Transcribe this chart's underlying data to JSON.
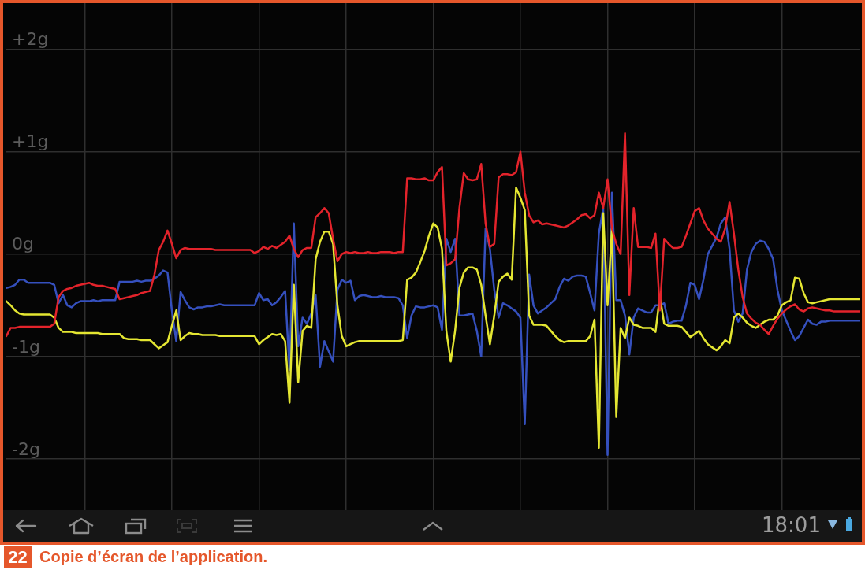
{
  "chart_data": {
    "type": "line",
    "categories": [
      null,
      null,
      null,
      null,
      null,
      null,
      null,
      null,
      null,
      null,
      null,
      null,
      null,
      null,
      null,
      null,
      null,
      null,
      null,
      null,
      null,
      null,
      null,
      null,
      null,
      null,
      null,
      null,
      null,
      null,
      null,
      null,
      null,
      null,
      null,
      null,
      null,
      null,
      null,
      null,
      null,
      null,
      null,
      null,
      null,
      null,
      null,
      null,
      null,
      null,
      null,
      null,
      null,
      null,
      null,
      null,
      null,
      null,
      null,
      null,
      null,
      null,
      null,
      null,
      null,
      null,
      null,
      null,
      null,
      null,
      null,
      null,
      null,
      null,
      null,
      null,
      null,
      null,
      null,
      null,
      null,
      null,
      null,
      null,
      null,
      null,
      null,
      null,
      null,
      null,
      null,
      null,
      null,
      null,
      null,
      null,
      null,
      null,
      null,
      null,
      null,
      null,
      null,
      null,
      null,
      null,
      null,
      null,
      null,
      null,
      null,
      null,
      null,
      null,
      null,
      null,
      null,
      null,
      null,
      null,
      null,
      null,
      null,
      null,
      null,
      null,
      null,
      null,
      null,
      null,
      null,
      null,
      null,
      null,
      null,
      null,
      null,
      null,
      null,
      null,
      null,
      null,
      null,
      null,
      null,
      null,
      null,
      null,
      null,
      null,
      null,
      null,
      null,
      null,
      null,
      null,
      null,
      null,
      null,
      null,
      null,
      null,
      null,
      null,
      null,
      null,
      null,
      null,
      null,
      null,
      null,
      null,
      null,
      null,
      null,
      null,
      null,
      null,
      null,
      null,
      null,
      null,
      null,
      null,
      null,
      null,
      null,
      null,
      null,
      null,
      null,
      null,
      null,
      null,
      null,
      null,
      null
    ],
    "series": [
      {
        "color": "#e3232b",
        "values": [
          -0.8,
          -0.72,
          -0.72,
          -0.71,
          -0.71,
          -0.71,
          -0.71,
          -0.71,
          -0.71,
          -0.71,
          -0.71,
          -0.68,
          -0.42,
          -0.36,
          -0.34,
          -0.33,
          -0.31,
          -0.3,
          -0.29,
          -0.28,
          -0.3,
          -0.31,
          -0.31,
          -0.32,
          -0.33,
          -0.34,
          -0.44,
          -0.43,
          -0.42,
          -0.41,
          -0.4,
          -0.38,
          -0.37,
          -0.36,
          -0.2,
          0.04,
          0.12,
          0.23,
          0.1,
          -0.04,
          0.04,
          0.06,
          0.05,
          0.05,
          0.05,
          0.05,
          0.05,
          0.05,
          0.04,
          0.04,
          0.04,
          0.04,
          0.04,
          0.04,
          0.04,
          0.04,
          0.04,
          0.01,
          0.03,
          0.07,
          0.05,
          0.08,
          0.06,
          0.09,
          0.12,
          0.18,
          0.05,
          -0.03,
          0.04,
          0.06,
          0.06,
          0.36,
          0.4,
          0.45,
          0.4,
          0.15,
          -0.07,
          0.0,
          0.02,
          0.01,
          0.02,
          0.01,
          0.01,
          0.02,
          0.01,
          0.01,
          0.02,
          0.02,
          0.02,
          0.01,
          0.02,
          0.02,
          0.74,
          0.74,
          0.73,
          0.73,
          0.74,
          0.72,
          0.72,
          0.8,
          0.85,
          -0.11,
          -0.09,
          -0.05,
          0.45,
          0.79,
          0.73,
          0.72,
          0.73,
          0.88,
          0.3,
          0.07,
          0.1,
          0.75,
          0.78,
          0.78,
          0.77,
          0.8,
          1.0,
          0.6,
          0.38,
          0.31,
          0.33,
          0.29,
          0.3,
          0.29,
          0.28,
          0.27,
          0.26,
          0.28,
          0.31,
          0.34,
          0.38,
          0.39,
          0.35,
          0.38,
          0.6,
          0.45,
          0.73,
          0.25,
          0.1,
          0.0,
          1.18,
          -0.4,
          0.45,
          0.07,
          0.07,
          0.07,
          0.06,
          0.2,
          -0.55,
          0.15,
          0.1,
          0.06,
          0.06,
          0.07,
          0.18,
          0.3,
          0.42,
          0.45,
          0.33,
          0.25,
          0.2,
          0.15,
          0.12,
          0.25,
          0.51,
          0.2,
          -0.15,
          -0.42,
          -0.58,
          -0.63,
          -0.67,
          -0.69,
          -0.74,
          -0.78,
          -0.7,
          -0.63,
          -0.58,
          -0.54,
          -0.51,
          -0.49,
          -0.54,
          -0.56,
          -0.53,
          -0.52,
          -0.53,
          -0.54,
          -0.55,
          -0.55,
          -0.56,
          -0.56,
          -0.56,
          -0.56,
          -0.56,
          -0.56,
          -0.56
        ]
      },
      {
        "color": "#e4e632",
        "values": [
          -0.46,
          -0.5,
          -0.55,
          -0.58,
          -0.59,
          -0.59,
          -0.59,
          -0.59,
          -0.59,
          -0.59,
          -0.59,
          -0.62,
          -0.72,
          -0.76,
          -0.76,
          -0.76,
          -0.77,
          -0.77,
          -0.77,
          -0.77,
          -0.77,
          -0.77,
          -0.78,
          -0.78,
          -0.78,
          -0.78,
          -0.78,
          -0.82,
          -0.83,
          -0.83,
          -0.83,
          -0.84,
          -0.84,
          -0.84,
          -0.88,
          -0.92,
          -0.89,
          -0.86,
          -0.7,
          -0.55,
          -0.84,
          -0.8,
          -0.77,
          -0.78,
          -0.78,
          -0.79,
          -0.79,
          -0.79,
          -0.79,
          -0.8,
          -0.8,
          -0.8,
          -0.8,
          -0.8,
          -0.8,
          -0.8,
          -0.8,
          -0.8,
          -0.88,
          -0.84,
          -0.81,
          -0.78,
          -0.79,
          -0.78,
          -0.85,
          -1.45,
          -0.3,
          -1.25,
          -0.75,
          -0.7,
          -0.72,
          -0.05,
          0.12,
          0.22,
          0.22,
          0.1,
          -0.5,
          -0.8,
          -0.9,
          -0.88,
          -0.86,
          -0.85,
          -0.85,
          -0.85,
          -0.85,
          -0.85,
          -0.85,
          -0.85,
          -0.85,
          -0.85,
          -0.85,
          -0.84,
          -0.25,
          -0.23,
          -0.18,
          -0.08,
          0.03,
          0.18,
          0.3,
          0.26,
          0.05,
          -0.75,
          -1.05,
          -0.75,
          -0.33,
          -0.18,
          -0.13,
          -0.13,
          -0.15,
          -0.3,
          -0.6,
          -0.88,
          -0.6,
          -0.27,
          -0.22,
          -0.19,
          -0.25,
          0.65,
          0.55,
          0.43,
          -0.6,
          -0.69,
          -0.69,
          -0.69,
          -0.7,
          -0.75,
          -0.8,
          -0.84,
          -0.86,
          -0.85,
          -0.85,
          -0.85,
          -0.85,
          -0.85,
          -0.8,
          -0.64,
          -1.89,
          0.4,
          -0.5,
          0.25,
          -1.59,
          -0.72,
          -0.82,
          -0.62,
          -0.69,
          -0.7,
          -0.72,
          -0.72,
          -0.72,
          -0.76,
          -0.41,
          -0.68,
          -0.7,
          -0.7,
          -0.7,
          -0.71,
          -0.76,
          -0.81,
          -0.78,
          -0.75,
          -0.82,
          -0.88,
          -0.91,
          -0.94,
          -0.9,
          -0.84,
          -0.87,
          -0.62,
          -0.58,
          -0.62,
          -0.67,
          -0.7,
          -0.72,
          -0.69,
          -0.66,
          -0.64,
          -0.64,
          -0.6,
          -0.5,
          -0.47,
          -0.45,
          -0.23,
          -0.24,
          -0.38,
          -0.47,
          -0.48,
          -0.47,
          -0.46,
          -0.45,
          -0.44,
          -0.44,
          -0.44,
          -0.44,
          -0.44,
          -0.44,
          -0.44,
          -0.44
        ]
      },
      {
        "color": "#3550be",
        "values": [
          -0.33,
          -0.32,
          -0.3,
          -0.25,
          -0.25,
          -0.28,
          -0.28,
          -0.28,
          -0.28,
          -0.28,
          -0.28,
          -0.3,
          -0.48,
          -0.4,
          -0.5,
          -0.52,
          -0.48,
          -0.46,
          -0.46,
          -0.46,
          -0.45,
          -0.46,
          -0.45,
          -0.45,
          -0.45,
          -0.45,
          -0.27,
          -0.27,
          -0.27,
          -0.27,
          -0.26,
          -0.27,
          -0.26,
          -0.26,
          -0.24,
          -0.21,
          -0.16,
          -0.18,
          -0.55,
          -0.85,
          -0.37,
          -0.45,
          -0.52,
          -0.54,
          -0.52,
          -0.52,
          -0.51,
          -0.51,
          -0.5,
          -0.49,
          -0.5,
          -0.5,
          -0.5,
          -0.5,
          -0.5,
          -0.5,
          -0.5,
          -0.5,
          -0.38,
          -0.45,
          -0.44,
          -0.5,
          -0.47,
          -0.42,
          -0.36,
          -1.13,
          0.3,
          -0.9,
          -0.62,
          -0.68,
          -0.58,
          -0.4,
          -1.1,
          -0.85,
          -0.95,
          -1.05,
          -0.35,
          -0.25,
          -0.28,
          -0.26,
          -0.45,
          -0.41,
          -0.4,
          -0.41,
          -0.42,
          -0.42,
          -0.41,
          -0.42,
          -0.42,
          -0.42,
          -0.43,
          -0.5,
          -0.82,
          -0.6,
          -0.51,
          -0.52,
          -0.52,
          -0.51,
          -0.5,
          -0.52,
          -0.74,
          0.15,
          0.02,
          0.15,
          -0.6,
          -0.6,
          -0.59,
          -0.58,
          -0.75,
          -1.0,
          0.25,
          0.05,
          -0.35,
          -0.62,
          -0.48,
          -0.5,
          -0.53,
          -0.56,
          -0.62,
          -1.66,
          -0.2,
          -0.5,
          -0.58,
          -0.55,
          -0.52,
          -0.48,
          -0.44,
          -0.32,
          -0.24,
          -0.26,
          -0.22,
          -0.21,
          -0.21,
          -0.22,
          -0.38,
          -0.55,
          0.2,
          0.45,
          -1.96,
          0.6,
          -0.45,
          -0.45,
          -0.6,
          -0.98,
          -0.62,
          -0.53,
          -0.55,
          -0.57,
          -0.57,
          -0.5,
          -0.5,
          -0.48,
          -0.68,
          -0.66,
          -0.65,
          -0.65,
          -0.5,
          -0.28,
          -0.3,
          -0.44,
          -0.25,
          0.0,
          0.08,
          0.16,
          0.3,
          0.36,
          0.05,
          -0.55,
          -0.66,
          -0.58,
          -0.15,
          0.02,
          0.1,
          0.13,
          0.12,
          0.05,
          -0.05,
          -0.35,
          -0.55,
          -0.65,
          -0.75,
          -0.84,
          -0.8,
          -0.72,
          -0.64,
          -0.68,
          -0.69,
          -0.66,
          -0.66,
          -0.65,
          -0.65,
          -0.65,
          -0.65,
          -0.65,
          -0.65,
          -0.65,
          -0.65
        ]
      }
    ],
    "ylim": [
      -2.5,
      2.45
    ],
    "yticks": [
      {
        "value": -2,
        "label": "-2g"
      },
      {
        "value": -1,
        "label": "-1g"
      },
      {
        "value": 0,
        "label": "0g"
      },
      {
        "value": 1,
        "label": "+1g"
      },
      {
        "value": 2,
        "label": "+2g"
      }
    ],
    "grid": true,
    "tick_labels": "y",
    "annotations": [
      "22",
      "Copie d’écran de l’application.",
      "18:01"
    ]
  }
}
